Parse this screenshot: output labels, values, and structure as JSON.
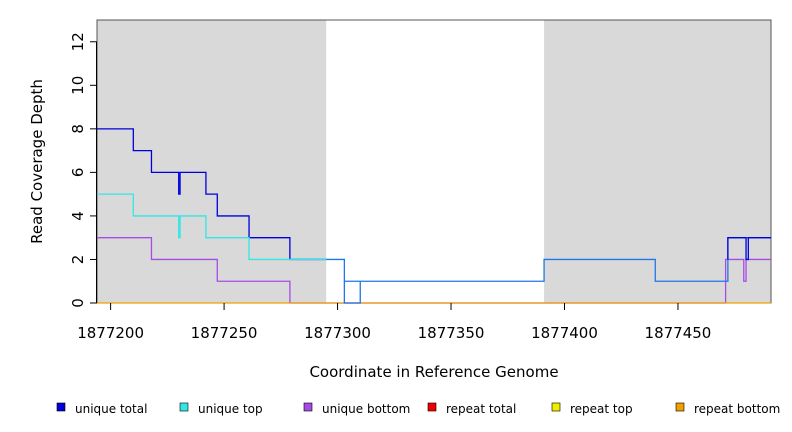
{
  "chart_data": {
    "type": "line",
    "title": "",
    "xlabel": "Coordinate in Reference Genome",
    "ylabel": "Read Coverage Depth",
    "xlim": [
      1877194,
      1877491
    ],
    "ylim": [
      0,
      13
    ],
    "x_ticks": [
      1877200,
      1877250,
      1877300,
      1877350,
      1877400,
      1877450
    ],
    "x_tick_labels": [
      "1877200",
      "1877250",
      "1877300",
      "1877350",
      "1877400",
      "1877450"
    ],
    "y_ticks": [
      0,
      2,
      4,
      6,
      8,
      10,
      12
    ],
    "y_tick_labels": [
      "0",
      "2",
      "4",
      "6",
      "8",
      "10",
      "12"
    ],
    "shaded_regions": [
      {
        "x_start": 1877194,
        "x_end": 1877295,
        "color": "#d9d9d9"
      },
      {
        "x_start": 1877391,
        "x_end": 1877491,
        "color": "#d9d9d9"
      }
    ],
    "series": [
      {
        "name": "unique total",
        "color": "#0000dd",
        "x": [
          1877194,
          1877210,
          1877210,
          1877218,
          1877218,
          1877230,
          1877230,
          1877230.6,
          1877230.6,
          1877231,
          1877231,
          1877242,
          1877242,
          1877247,
          1877247,
          1877261,
          1877261,
          1877279,
          1877279,
          1877295
        ],
        "y": [
          8,
          8,
          7,
          7,
          6,
          6,
          5,
          5,
          6,
          6,
          6,
          6,
          5,
          5,
          4,
          4,
          3,
          3,
          2,
          2
        ]
      },
      {
        "name": "unique top",
        "color": "#33e6e6",
        "x": [
          1877194,
          1877210,
          1877210,
          1877230,
          1877230,
          1877230.6,
          1877230.6,
          1877242,
          1877242,
          1877261,
          1877261,
          1877279,
          1877279,
          1877295
        ],
        "y": [
          5,
          5,
          4,
          4,
          3,
          3,
          4,
          4,
          3,
          3,
          2,
          2,
          2,
          2
        ]
      },
      {
        "name": "unique bottom",
        "color": "#a64ce6",
        "x": [
          1877194,
          1877218,
          1877218,
          1877247,
          1877247,
          1877279,
          1877279,
          1877295,
          1877295,
          1877471,
          1877471,
          1877479,
          1877479,
          1877480,
          1877480,
          1877491
        ],
        "y": [
          3,
          3,
          2,
          2,
          1,
          1,
          0,
          0,
          0,
          0,
          2,
          2,
          1,
          1,
          2,
          2
        ]
      },
      {
        "name": "repeat total",
        "color": "#ee0000",
        "x": [],
        "y": []
      },
      {
        "name": "repeat top",
        "color": "#eeee00",
        "x": [],
        "y": []
      },
      {
        "name": "repeat bottom",
        "color": "#f0a000",
        "x": [
          1877194,
          1877491
        ],
        "y": [
          0,
          0
        ]
      },
      {
        "name": "",
        "color": "#1f77e6",
        "x": [
          1877295,
          1877303,
          1877303,
          1877310,
          1877310,
          1877391,
          1877391,
          1877440,
          1877440,
          1877472,
          1877472,
          1877480,
          1877480,
          1877491
        ],
        "y": [
          2,
          2,
          1,
          1,
          1,
          1,
          2,
          2,
          1,
          1,
          3,
          3,
          3,
          3
        ]
      },
      {
        "name": "",
        "color": "#1f77e6",
        "x": [
          1877303,
          1877303,
          1877310,
          1877310
        ],
        "y": [
          1,
          0,
          0,
          1
        ]
      },
      {
        "name": "",
        "color": "#0000dd",
        "x": [
          1877472,
          1877472,
          1877480,
          1877480,
          1877481,
          1877481,
          1877491
        ],
        "y": [
          2,
          3,
          3,
          2,
          2,
          3,
          3
        ]
      }
    ],
    "legend": {
      "placement": "bottom",
      "entries": [
        {
          "label": "unique total",
          "color": "#0000dd"
        },
        {
          "label": "unique top",
          "color": "#33e6e6"
        },
        {
          "label": "unique bottom",
          "color": "#a64ce6"
        },
        {
          "label": "repeat total",
          "color": "#ee0000"
        },
        {
          "label": "repeat top",
          "color": "#eeee00"
        },
        {
          "label": "repeat bottom",
          "color": "#f0a000"
        }
      ]
    },
    "grid": false
  }
}
